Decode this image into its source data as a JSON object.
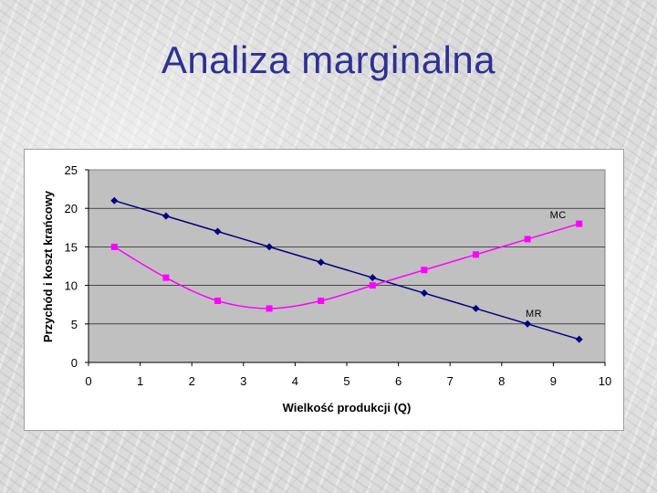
{
  "slide": {
    "title": "Analiza marginalna"
  },
  "chart_data": {
    "type": "line",
    "xlabel": "Wielkość produkcji (Q)",
    "ylabel": "Przychód i koszt krańcowy",
    "xlim": [
      0,
      10
    ],
    "ylim": [
      0,
      25
    ],
    "x_ticks": [
      0,
      1,
      2,
      3,
      4,
      5,
      6,
      7,
      8,
      9,
      10
    ],
    "y_ticks": [
      0,
      5,
      10,
      15,
      20,
      25
    ],
    "grid": true,
    "plot_background": "#c0c0c0",
    "legend": "none",
    "series": [
      {
        "name": "MR",
        "color": "#000080",
        "marker": "diamond",
        "x": [
          0.5,
          1.5,
          2.5,
          3.5,
          4.5,
          5.5,
          6.5,
          7.5,
          8.5,
          9.5
        ],
        "y": [
          21,
          19,
          17,
          15,
          13,
          11,
          9,
          7,
          5,
          3
        ]
      },
      {
        "name": "MC",
        "color": "#ff00ff",
        "marker": "square",
        "smooth": true,
        "x": [
          0.5,
          1.5,
          2.5,
          3.5,
          4.5,
          5.5,
          6.5,
          7.5,
          8.5,
          9.5
        ],
        "y": [
          15,
          11,
          8,
          7,
          8,
          10,
          12,
          14,
          16,
          18
        ]
      }
    ]
  }
}
